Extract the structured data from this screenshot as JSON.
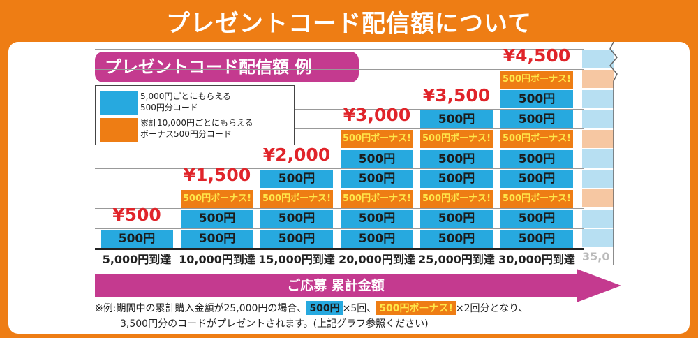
{
  "title": "プレゼントコード配信額について",
  "chip": "プレゼントコード配信額 例",
  "legend": [
    {
      "color": "#27a9df",
      "text1": "5,000円ごとにもらえる",
      "text2": "500円分コード"
    },
    {
      "color": "#ee7d14",
      "text1": "累計10,000円ごとにもらえる",
      "text2": "ボーナス500円分コード"
    }
  ],
  "chart_data": {
    "type": "bar",
    "stacked": true,
    "categories": [
      "5,000円到達",
      "10,000円到達",
      "15,000円到達",
      "20,000円到達",
      "25,000円到達",
      "30,000円到達"
    ],
    "totals": [
      "¥500",
      "¥1,500",
      "¥2,000",
      "¥3,000",
      "¥3,500",
      "¥4,500"
    ],
    "base_label": "500円",
    "bonus_label": "500円ボーナス!",
    "stacks": [
      [
        "base"
      ],
      [
        "base",
        "base",
        "bonus"
      ],
      [
        "base",
        "base",
        "bonus",
        "base"
      ],
      [
        "base",
        "base",
        "bonus",
        "base",
        "base",
        "bonus"
      ],
      [
        "base",
        "base",
        "bonus",
        "base",
        "base",
        "bonus",
        "base"
      ],
      [
        "base",
        "base",
        "bonus",
        "base",
        "base",
        "bonus",
        "base",
        "base",
        "bonus"
      ]
    ],
    "colors": {
      "base": "#27a9df",
      "bonus": "#ee7d14",
      "price": "#e0242a"
    },
    "faded_category": "35,0"
  },
  "axis_arrow": "ご応募 累計金額",
  "note": {
    "prefix": "※例:期間中の累計購入金額が25,000円の場合、",
    "tag1": "500円",
    "mid": "×5回、",
    "tag2": "500円ボーナス!",
    "suffix": "×2回分となり、",
    "line2": "3,500円分のコードがプレゼントされます。(上記グラフ参照ください)"
  }
}
